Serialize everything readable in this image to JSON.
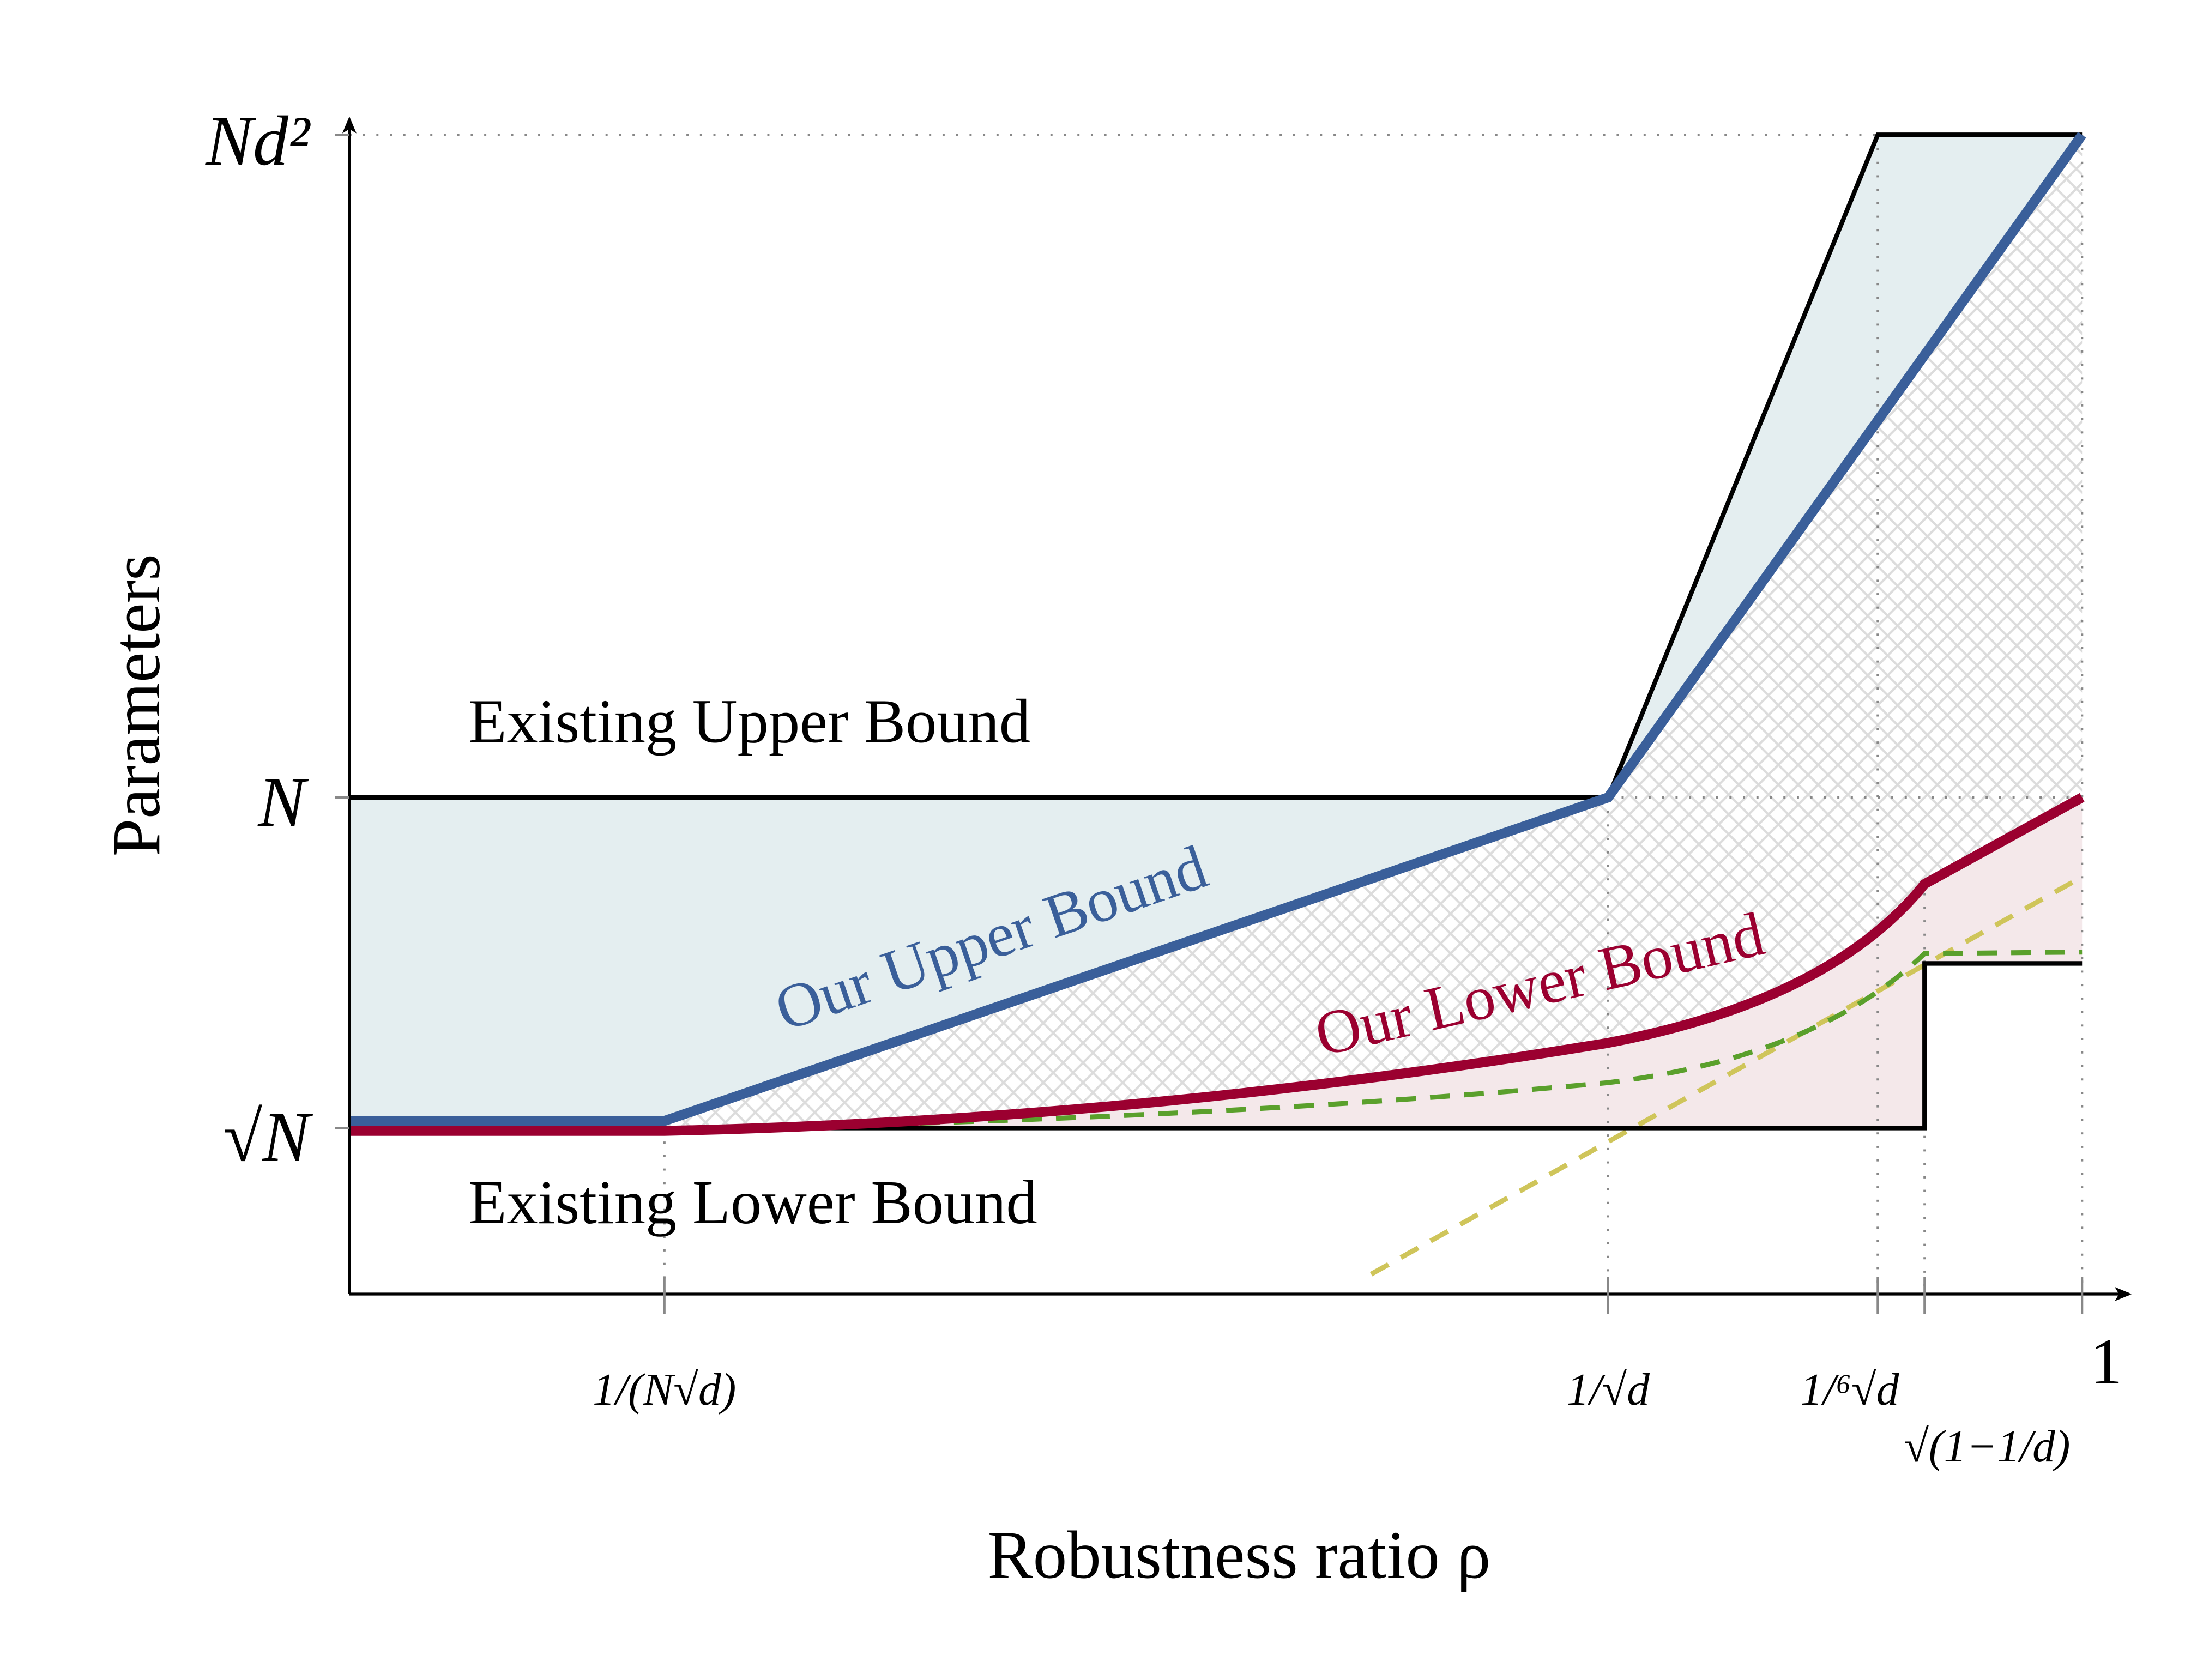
{
  "y_axis": {
    "label": "Parameters",
    "ticks": [
      "Nd²",
      "N",
      "√N"
    ]
  },
  "x_axis": {
    "label": "Robustness ratio ρ",
    "ticks": [
      "1/(N√d)",
      "1/√d",
      "1/⁶√d",
      "√(1−1/d)",
      "1"
    ]
  },
  "annotations": {
    "existing_upper": "Existing Upper Bound",
    "existing_lower": "Existing Lower Bound",
    "our_upper": "Our Upper Bound",
    "our_lower": "Our Lower Bound"
  },
  "colors": {
    "our_upper": "#3a5f9a",
    "our_lower": "#9b0030",
    "existing": "#000000",
    "upper_fill": "#e4eef0",
    "lower_fill": "#f4e8ea",
    "green_dashed": "#5aa02c",
    "yellow_dashed": "#cfc55a",
    "hatch": "#d9d9d9"
  }
}
